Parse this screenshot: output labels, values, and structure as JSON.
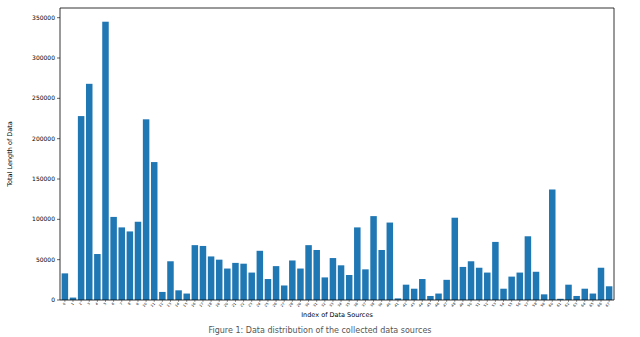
{
  "chart_data": {
    "type": "bar",
    "title": "Figure 1: Data distribution of the collected data sources",
    "x_label": "Index of Data Sources",
    "y_label": "Total Length of Data",
    "categories": [
      "0",
      "1",
      "2",
      "3",
      "4",
      "5",
      "6",
      "7",
      "8",
      "9",
      "10",
      "11",
      "12",
      "13",
      "14",
      "15",
      "16",
      "17",
      "18",
      "19",
      "20",
      "21",
      "22",
      "23",
      "24",
      "25",
      "26",
      "27",
      "28",
      "29",
      "30",
      "31",
      "32",
      "33",
      "34",
      "35",
      "36",
      "37",
      "38",
      "39",
      "40",
      "41",
      "42",
      "43",
      "44",
      "45",
      "46",
      "47",
      "48",
      "49",
      "50",
      "51",
      "52",
      "53",
      "54",
      "55",
      "56",
      "57",
      "58",
      "59",
      "60",
      "61",
      "62",
      "63",
      "64",
      "65",
      "66",
      "67"
    ],
    "values": [
      33000,
      3000,
      228000,
      268000,
      57000,
      345000,
      103000,
      90000,
      85000,
      97000,
      224000,
      171000,
      10000,
      48000,
      12000,
      8000,
      68000,
      67000,
      54000,
      50000,
      39000,
      46000,
      45000,
      34000,
      61000,
      26000,
      42000,
      18000,
      49000,
      39000,
      68000,
      62000,
      28000,
      52000,
      43000,
      31000,
      90000,
      38000,
      104000,
      62000,
      96000,
      2000,
      19000,
      14000,
      26000,
      5000,
      8000,
      25000,
      102000,
      41000,
      48000,
      40000,
      34000,
      72000,
      14000,
      29000,
      34000,
      79000,
      35000,
      7000,
      137000,
      1500,
      19000,
      5000,
      14000,
      8000,
      40000,
      17000
    ],
    "color": "#1f77b4",
    "ylim": [
      0,
      362000
    ],
    "yticks": [
      0,
      50000,
      100000,
      150000,
      200000,
      250000,
      300000,
      350000
    ],
    "grid": false
  }
}
